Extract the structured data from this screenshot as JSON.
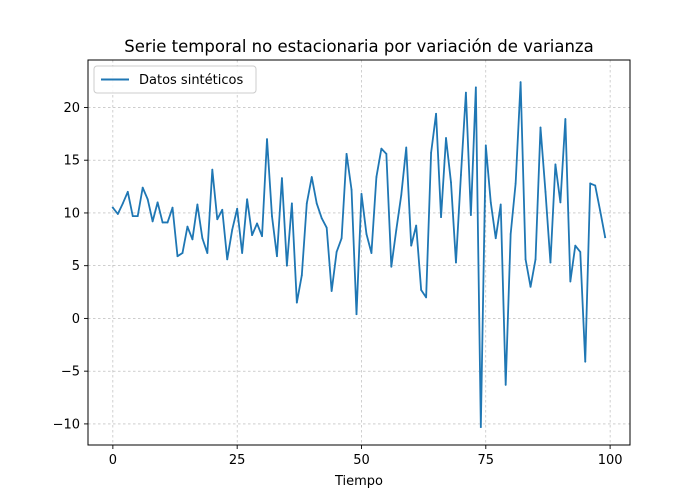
{
  "chart_data": {
    "type": "line",
    "title": "Serie temporal no estacionaria por variación de varianza",
    "xlabel": "Tiempo",
    "ylabel": "",
    "xlim": [
      -5,
      104
    ],
    "ylim": [
      -12,
      24.5
    ],
    "xticks": [
      0,
      25,
      50,
      75,
      100
    ],
    "yticks": [
      -10,
      -5,
      0,
      5,
      10,
      15,
      20
    ],
    "xtick_labels": [
      "0",
      "25",
      "50",
      "75",
      "100"
    ],
    "ytick_labels": [
      "−10",
      "−5",
      "0",
      "5",
      "10",
      "15",
      "20"
    ],
    "grid": true,
    "legend": {
      "position": "top-left",
      "entries": [
        "Datos sintéticos"
      ]
    },
    "series": [
      {
        "name": "Datos sintéticos",
        "color": "#1f77b4",
        "x": [
          0,
          1,
          2,
          3,
          4,
          5,
          6,
          7,
          8,
          9,
          10,
          11,
          12,
          13,
          14,
          15,
          16,
          17,
          18,
          19,
          20,
          21,
          22,
          23,
          24,
          25,
          26,
          27,
          28,
          29,
          30,
          31,
          32,
          33,
          34,
          35,
          36,
          37,
          38,
          39,
          40,
          41,
          42,
          43,
          44,
          45,
          46,
          47,
          48,
          49,
          50,
          51,
          52,
          53,
          54,
          55,
          56,
          57,
          58,
          59,
          60,
          61,
          62,
          63,
          64,
          65,
          66,
          67,
          68,
          69,
          70,
          71,
          72,
          73,
          74,
          75,
          76,
          77,
          78,
          79,
          80,
          81,
          82,
          83,
          84,
          85,
          86,
          87,
          88,
          89,
          90,
          91,
          92,
          93,
          94,
          95,
          96,
          97,
          98,
          99
        ],
        "values": [
          10.5,
          9.9,
          10.9,
          12.0,
          9.7,
          9.7,
          12.4,
          11.3,
          9.2,
          11.0,
          9.1,
          9.1,
          10.5,
          5.9,
          6.2,
          8.7,
          7.5,
          10.8,
          7.6,
          6.2,
          14.1,
          9.4,
          10.3,
          5.6,
          8.4,
          10.4,
          6.2,
          11.3,
          7.9,
          9.0,
          7.8,
          17.0,
          9.7,
          5.9,
          13.3,
          5.0,
          10.9,
          1.5,
          4.1,
          10.9,
          13.4,
          10.9,
          9.5,
          8.6,
          2.6,
          6.3,
          7.6,
          15.6,
          12.2,
          0.4,
          11.8,
          8.0,
          6.2,
          13.4,
          16.1,
          15.6,
          4.9,
          8.4,
          11.7,
          16.2,
          6.9,
          8.8,
          2.7,
          2.0,
          15.7,
          19.4,
          9.6,
          17.1,
          12.9,
          5.3,
          13.6,
          21.4,
          9.8,
          21.9,
          -10.3,
          16.4,
          11.0,
          7.6,
          10.8,
          -6.3,
          8.0,
          12.8,
          22.4,
          5.6,
          3.0,
          5.6,
          18.1,
          12.0,
          5.3,
          14.6,
          11.0,
          18.9,
          3.5,
          6.9,
          6.3,
          -4.1,
          12.8,
          12.6,
          10.2,
          7.7
        ]
      }
    ]
  }
}
